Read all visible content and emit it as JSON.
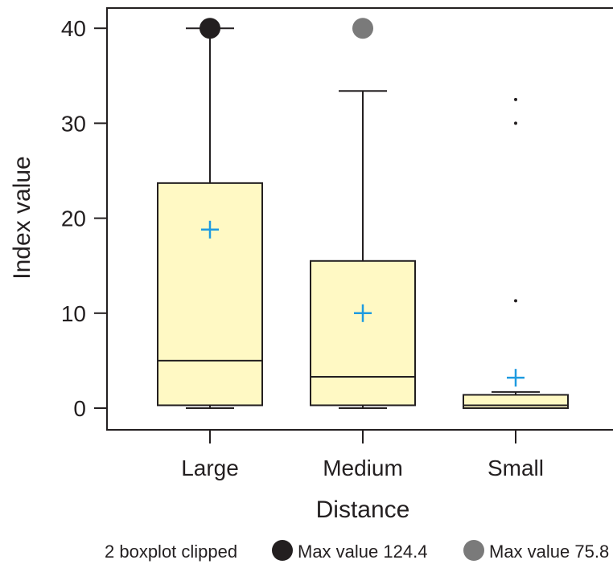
{
  "chart_data": {
    "type": "boxplot",
    "title": "",
    "xlabel": "Distance",
    "ylabel": "Index value",
    "ylim": [
      0,
      40
    ],
    "yticks": [
      0,
      10,
      20,
      30,
      40
    ],
    "categories": [
      "Large",
      "Medium",
      "Small"
    ],
    "boxes": [
      {
        "category": "Large",
        "min": 0.0,
        "q1": 0.3,
        "median": 5.0,
        "q3": 23.7,
        "whisker_high": 40.0,
        "mean": 18.8,
        "outliers": [],
        "clipped_marker": "dark"
      },
      {
        "category": "Medium",
        "min": 0.0,
        "q1": 0.3,
        "median": 3.3,
        "q3": 15.5,
        "whisker_high": 33.4,
        "mean": 10.0,
        "outliers": [],
        "clipped_marker": "gray"
      },
      {
        "category": "Small",
        "min": 0.0,
        "q1": 0.0,
        "median": 0.3,
        "q3": 1.4,
        "whisker_high": 1.7,
        "mean": 3.2,
        "outliers": [
          11.3,
          30.0,
          32.5
        ],
        "clipped_marker": null
      }
    ],
    "legend": {
      "placement": "bottom",
      "note": "2 boxplot clipped",
      "items": [
        {
          "marker": "dark",
          "label": "Max value 124.4"
        },
        {
          "marker": "gray",
          "label": "Max value 75.8"
        }
      ]
    },
    "colors": {
      "box_fill": "#fff9c4",
      "line": "#231f20",
      "mean_marker": "#1e9be0",
      "clip_dark": "#231f20",
      "clip_gray": "#7a7a7a",
      "background": "#ffffff"
    }
  }
}
